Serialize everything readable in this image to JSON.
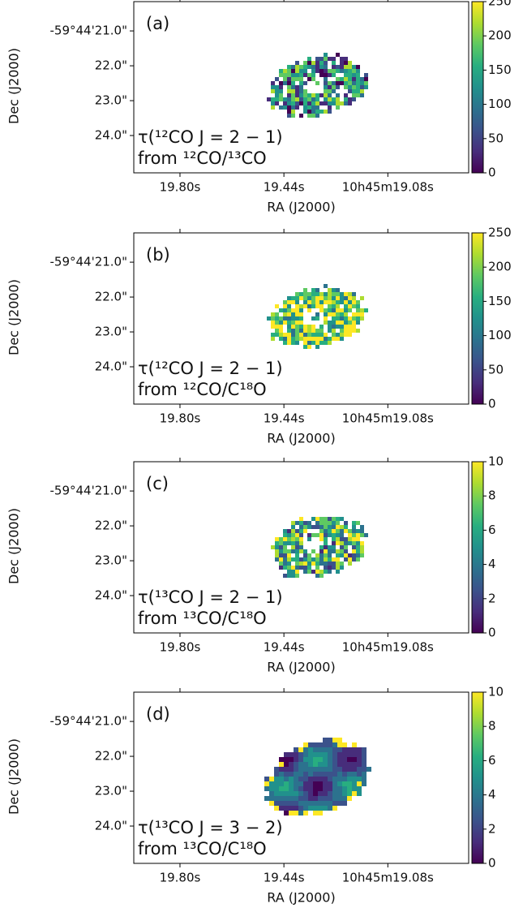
{
  "chart_data": [
    {
      "type": "image",
      "panel_label": "(a)",
      "annotation": [
        "τ(¹²CO J = 2 − 1)",
        "from ¹²CO/¹³CO"
      ],
      "xlabel": "RA (J2000)",
      "ylabel": "Dec (J2000)",
      "colormap": "viridis",
      "xlim": [
        19.96,
        18.8
      ],
      "xticks": [
        {
          "value": 19.8,
          "label": "19.80s"
        },
        {
          "value": 19.44,
          "label": "19.44s"
        },
        {
          "value": 19.08,
          "label": "10h45m19.08s"
        }
      ],
      "ylim": [
        25.07,
        20.16
      ],
      "yticks": [
        {
          "value": 21.0,
          "label": "-59°44'21.0\""
        },
        {
          "value": 22.0,
          "label": "22.0\""
        },
        {
          "value": 23.0,
          "label": "23.0\""
        },
        {
          "value": 24.0,
          "label": "24.0\""
        }
      ],
      "clim": [
        0,
        250
      ],
      "cticks": [
        0,
        50,
        100,
        150,
        200,
        250
      ]
    },
    {
      "type": "image",
      "panel_label": "(b)",
      "annotation": [
        "τ(¹²CO J = 2 − 1)",
        "from ¹²CO/C¹⁸O"
      ],
      "xlabel": "RA (J2000)",
      "ylabel": "Dec (J2000)",
      "colormap": "viridis",
      "xlim": [
        19.96,
        18.8
      ],
      "xticks": [
        {
          "value": 19.8,
          "label": "19.80s"
        },
        {
          "value": 19.44,
          "label": "19.44s"
        },
        {
          "value": 19.08,
          "label": "10h45m19.08s"
        }
      ],
      "ylim": [
        25.07,
        20.16
      ],
      "yticks": [
        {
          "value": 21.0,
          "label": "-59°44'21.0\""
        },
        {
          "value": 22.0,
          "label": "22.0\""
        },
        {
          "value": 23.0,
          "label": "23.0\""
        },
        {
          "value": 24.0,
          "label": "24.0\""
        }
      ],
      "clim": [
        0,
        250
      ],
      "cticks": [
        0,
        50,
        100,
        150,
        200,
        250
      ]
    },
    {
      "type": "image",
      "panel_label": "(c)",
      "annotation": [
        "τ(¹³CO J = 2 − 1)",
        "from ¹³CO/C¹⁸O"
      ],
      "xlabel": "RA (J2000)",
      "ylabel": "Dec (J2000)",
      "colormap": "viridis",
      "xlim": [
        19.96,
        18.8
      ],
      "xticks": [
        {
          "value": 19.8,
          "label": "19.80s"
        },
        {
          "value": 19.44,
          "label": "19.44s"
        },
        {
          "value": 19.08,
          "label": "10h45m19.08s"
        }
      ],
      "ylim": [
        25.07,
        20.16
      ],
      "yticks": [
        {
          "value": 21.0,
          "label": "-59°44'21.0\""
        },
        {
          "value": 22.0,
          "label": "22.0\""
        },
        {
          "value": 23.0,
          "label": "23.0\""
        },
        {
          "value": 24.0,
          "label": "24.0\""
        }
      ],
      "clim": [
        0,
        10
      ],
      "cticks": [
        0,
        2,
        4,
        6,
        8,
        10
      ]
    },
    {
      "type": "image",
      "panel_label": "(d)",
      "annotation": [
        "τ(¹³CO J = 3 − 2)",
        "from ¹³CO/C¹⁸O"
      ],
      "xlabel": "RA (J2000)",
      "ylabel": "Dec (J2000)",
      "colormap": "viridis",
      "xlim": [
        19.96,
        18.8
      ],
      "xticks": [
        {
          "value": 19.8,
          "label": "19.80s"
        },
        {
          "value": 19.44,
          "label": "19.44s"
        },
        {
          "value": 19.08,
          "label": "10h45m19.08s"
        }
      ],
      "ylim": [
        25.07,
        20.16
      ],
      "yticks": [
        {
          "value": 21.0,
          "label": "-59°44'21.0\""
        },
        {
          "value": 22.0,
          "label": "22.0\""
        },
        {
          "value": 23.0,
          "label": "23.0\""
        },
        {
          "value": 24.0,
          "label": "24.0\""
        }
      ],
      "clim": [
        0,
        10
      ],
      "cticks": [
        0,
        2,
        4,
        6,
        8,
        10
      ]
    }
  ]
}
